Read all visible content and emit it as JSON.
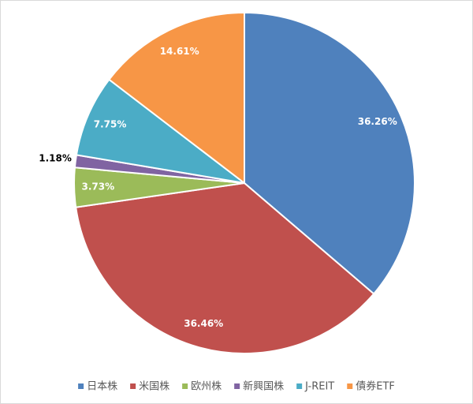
{
  "chart_data": {
    "type": "pie",
    "categories": [
      "日本株",
      "米国株",
      "欧州株",
      "新興国株",
      "J-REIT",
      "債券ETF"
    ],
    "values": [
      36.26,
      36.46,
      3.73,
      1.18,
      7.75,
      14.61
    ],
    "value_labels": [
      "36.26%",
      "36.46%",
      "3.73%",
      "1.18%",
      "7.75%",
      "14.61%"
    ],
    "colors": [
      "#4f81bd",
      "#c0504d",
      "#9bbb59",
      "#8064a2",
      "#4bacc6",
      "#f79646"
    ],
    "legend": "bottom"
  }
}
